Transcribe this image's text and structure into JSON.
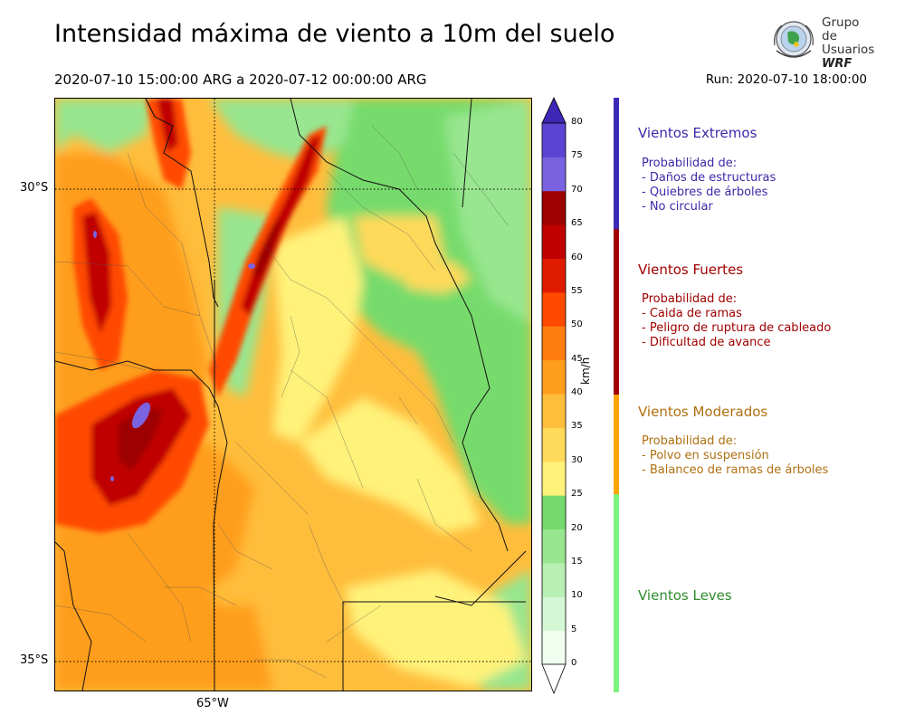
{
  "header": {
    "title": "Intensidad máxima de viento a 10m del suelo",
    "date_range": "2020-07-10 15:00:00 ARG  a  2020-07-12 00:00:00 ARG",
    "run": "Run: 2020-07-10 18:00:00"
  },
  "logo": {
    "line1": "Grupo de",
    "line2": "Usuarios",
    "line3": "WRF"
  },
  "map": {
    "lat_labels": [
      "30°S",
      "35°S"
    ],
    "lon_labels": [
      "65°W"
    ]
  },
  "colorbar": {
    "unit": "km/h",
    "ticks": [
      "0",
      "5",
      "10",
      "15",
      "20",
      "25",
      "30",
      "35",
      "40",
      "45",
      "50",
      "55",
      "60",
      "65",
      "70",
      "75",
      "80"
    ],
    "colors": [
      "#f0fff0",
      "#d4f7d4",
      "#b7efb2",
      "#98e68f",
      "#76db6c",
      "#fff27a",
      "#ffd95a",
      "#ffbd3c",
      "#ff9e1c",
      "#ff7c10",
      "#ff4a00",
      "#e01c00",
      "#c00000",
      "#9c0000",
      "#7a63e0",
      "#5a44d1",
      "#3e27b5"
    ],
    "under_color": "#ffffff",
    "over_color": "#3e27b5"
  },
  "categories": [
    {
      "title": "Vientos Extremos",
      "color": "#3b2aa8",
      "bar_color": "#3b2ab8",
      "lines": [
        "Probabilidad de:",
        "- Daños de estructuras",
        "- Quiebres de árboles",
        "- No circular"
      ]
    },
    {
      "title": "Vientos Fuertes",
      "color": "#a00000",
      "bar_color": "#a00000",
      "lines": [
        "Probabilidad de:",
        "- Caida de ramas",
        "- Peligro de ruptura de cableado",
        "- Dificultad de avance"
      ]
    },
    {
      "title": "Vientos Moderados",
      "color": "#b07010",
      "bar_color": "#ffa500",
      "lines": [
        "Probabilidad de:",
        "- Polvo en suspensión",
        "- Balanceo de ramas de árboles"
      ]
    },
    {
      "title": "Vientos Leves",
      "color": "#2e8b2e",
      "bar_color": "#7cf57c",
      "lines": []
    }
  ]
}
